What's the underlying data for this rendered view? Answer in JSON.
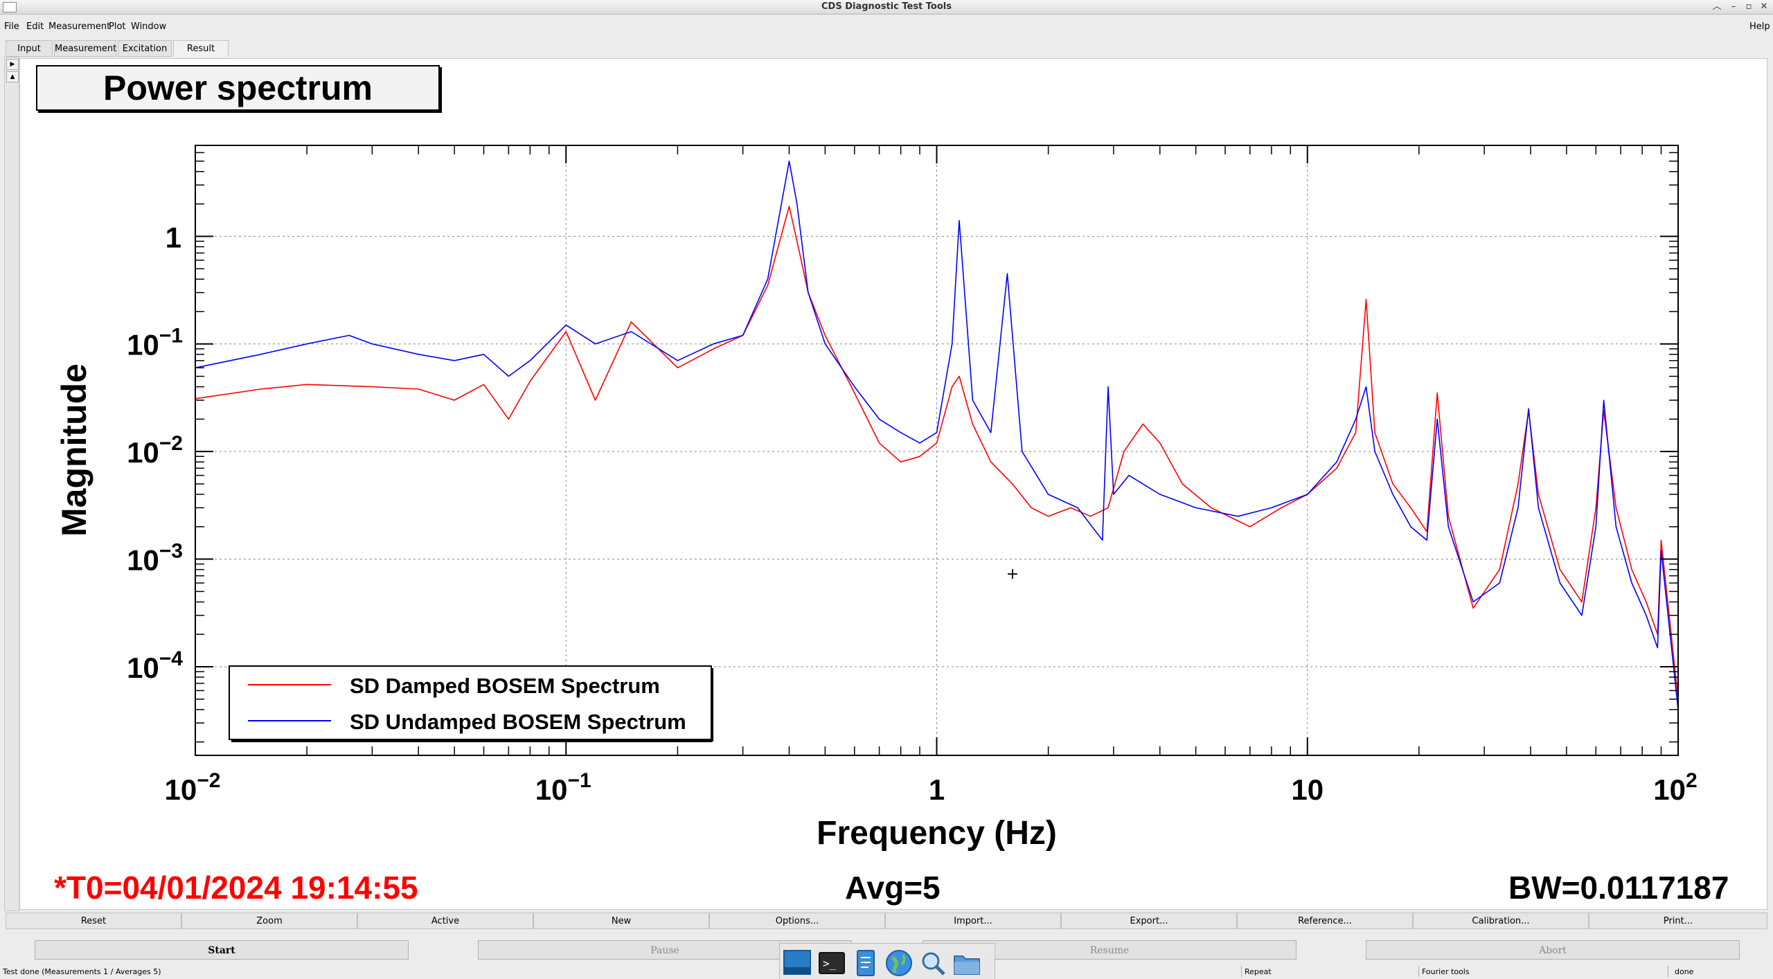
{
  "window": {
    "title": "CDS Diagnostic Test Tools"
  },
  "menu": {
    "file": "File",
    "edit": "Edit",
    "measurement": "Measurement",
    "plot": "Plot",
    "window": "Window",
    "help": "Help"
  },
  "tabs": [
    {
      "label": "Input"
    },
    {
      "label": "Measurement"
    },
    {
      "label": "Excitation"
    },
    {
      "label": "Result"
    }
  ],
  "plot": {
    "title": "Power spectrum",
    "t0": "*T0=04/01/2024 19:14:55",
    "avg": "Avg=5",
    "bw": "BW=0.0117187"
  },
  "chart_data": {
    "type": "line",
    "x_scale": "log",
    "y_scale": "log",
    "xlabel": "Frequency (Hz)",
    "ylabel": "Magnitude",
    "xlim": [
      0.01,
      100
    ],
    "ylim": [
      1.5e-05,
      7
    ],
    "grid": true,
    "legend_position": "bottom-left",
    "x_ticks": [
      {
        "base": "10",
        "exp": "−2"
      },
      {
        "base": "10",
        "exp": "−1"
      },
      {
        "base": "1",
        "exp": ""
      },
      {
        "base": "10",
        "exp": ""
      },
      {
        "base": "10",
        "exp": "2"
      }
    ],
    "y_ticks": [
      {
        "base": "1",
        "exp": ""
      },
      {
        "base": "10",
        "exp": "−1"
      },
      {
        "base": "10",
        "exp": "−2"
      },
      {
        "base": "10",
        "exp": "−3"
      },
      {
        "base": "10",
        "exp": "−4"
      }
    ],
    "series": [
      {
        "name": "SD Damped BOSEM Spectrum",
        "color": "#ff0000",
        "x": [
          0.01,
          0.015,
          0.02,
          0.03,
          0.04,
          0.05,
          0.06,
          0.07,
          0.08,
          0.1,
          0.12,
          0.15,
          0.2,
          0.25,
          0.3,
          0.35,
          0.4,
          0.42,
          0.45,
          0.5,
          0.6,
          0.7,
          0.8,
          0.9,
          1.0,
          1.1,
          1.15,
          1.25,
          1.4,
          1.6,
          1.8,
          2.0,
          2.3,
          2.6,
          2.9,
          3.2,
          3.6,
          4.0,
          4.6,
          5.5,
          7.0,
          8.5,
          10,
          12,
          13.5,
          14.4,
          15.2,
          17,
          19,
          21,
          22.4,
          24,
          28,
          33,
          37,
          39.5,
          42,
          48,
          55,
          60,
          63,
          68,
          75,
          82,
          88,
          90,
          100
        ],
        "y": [
          0.031,
          0.038,
          0.042,
          0.04,
          0.038,
          0.03,
          0.042,
          0.02,
          0.045,
          0.13,
          0.03,
          0.16,
          0.06,
          0.09,
          0.12,
          0.35,
          1.9,
          0.9,
          0.3,
          0.12,
          0.035,
          0.012,
          0.008,
          0.009,
          0.012,
          0.04,
          0.05,
          0.018,
          0.008,
          0.005,
          0.003,
          0.0025,
          0.003,
          0.0025,
          0.003,
          0.01,
          0.018,
          0.012,
          0.005,
          0.003,
          0.002,
          0.003,
          0.004,
          0.007,
          0.015,
          0.26,
          0.015,
          0.005,
          0.003,
          0.0018,
          0.035,
          0.0025,
          0.00035,
          0.0008,
          0.005,
          0.024,
          0.004,
          0.0008,
          0.0004,
          0.003,
          0.024,
          0.003,
          0.0008,
          0.0004,
          0.0002,
          0.0015,
          5e-05
        ]
      },
      {
        "name": "SD Undamped BOSEM Spectrum",
        "color": "#0000ff",
        "x": [
          0.01,
          0.015,
          0.02,
          0.026,
          0.03,
          0.04,
          0.05,
          0.06,
          0.07,
          0.08,
          0.1,
          0.12,
          0.15,
          0.2,
          0.25,
          0.3,
          0.35,
          0.4,
          0.42,
          0.45,
          0.5,
          0.6,
          0.7,
          0.8,
          0.9,
          1.0,
          1.1,
          1.15,
          1.25,
          1.4,
          1.55,
          1.7,
          2.0,
          2.4,
          2.8,
          2.9,
          3.0,
          3.3,
          4.0,
          5.0,
          6.5,
          8.0,
          10,
          12,
          13.5,
          14.4,
          15.2,
          17,
          19,
          21,
          22.4,
          24,
          28,
          33,
          37,
          39.5,
          42,
          48,
          55,
          60,
          63,
          68,
          75,
          82,
          88,
          90,
          100
        ],
        "y": [
          0.06,
          0.08,
          0.1,
          0.12,
          0.1,
          0.08,
          0.07,
          0.08,
          0.05,
          0.07,
          0.15,
          0.1,
          0.13,
          0.07,
          0.1,
          0.12,
          0.4,
          5.0,
          2.0,
          0.3,
          0.1,
          0.04,
          0.02,
          0.015,
          0.012,
          0.015,
          0.1,
          1.4,
          0.03,
          0.015,
          0.45,
          0.01,
          0.004,
          0.003,
          0.0015,
          0.04,
          0.004,
          0.006,
          0.004,
          0.003,
          0.0025,
          0.003,
          0.004,
          0.008,
          0.02,
          0.04,
          0.01,
          0.004,
          0.002,
          0.0015,
          0.02,
          0.002,
          0.0004,
          0.0006,
          0.003,
          0.025,
          0.003,
          0.0006,
          0.0003,
          0.002,
          0.03,
          0.002,
          0.0006,
          0.0003,
          0.00015,
          0.0012,
          4e-05
        ]
      }
    ]
  },
  "toolbar": {
    "reset": "Reset",
    "zoom": "Zoom",
    "active": "Active",
    "new": "New",
    "options": "Options...",
    "import": "Import...",
    "export": "Export...",
    "reference": "Reference...",
    "calibration": "Calibration...",
    "print": "Print..."
  },
  "controls": {
    "start": "Start",
    "pause": "Pause",
    "resume": "Resume",
    "abort": "Abort"
  },
  "status": {
    "message": "Test done (Measurements 1 / Averages 5)",
    "repeat": "Repeat",
    "tools": "Fourier tools",
    "state": "done"
  },
  "icons": {
    "dock": [
      "desktop-icon",
      "terminal-icon",
      "text-editor-icon",
      "browser-icon",
      "search-icon",
      "folder-icon"
    ]
  }
}
